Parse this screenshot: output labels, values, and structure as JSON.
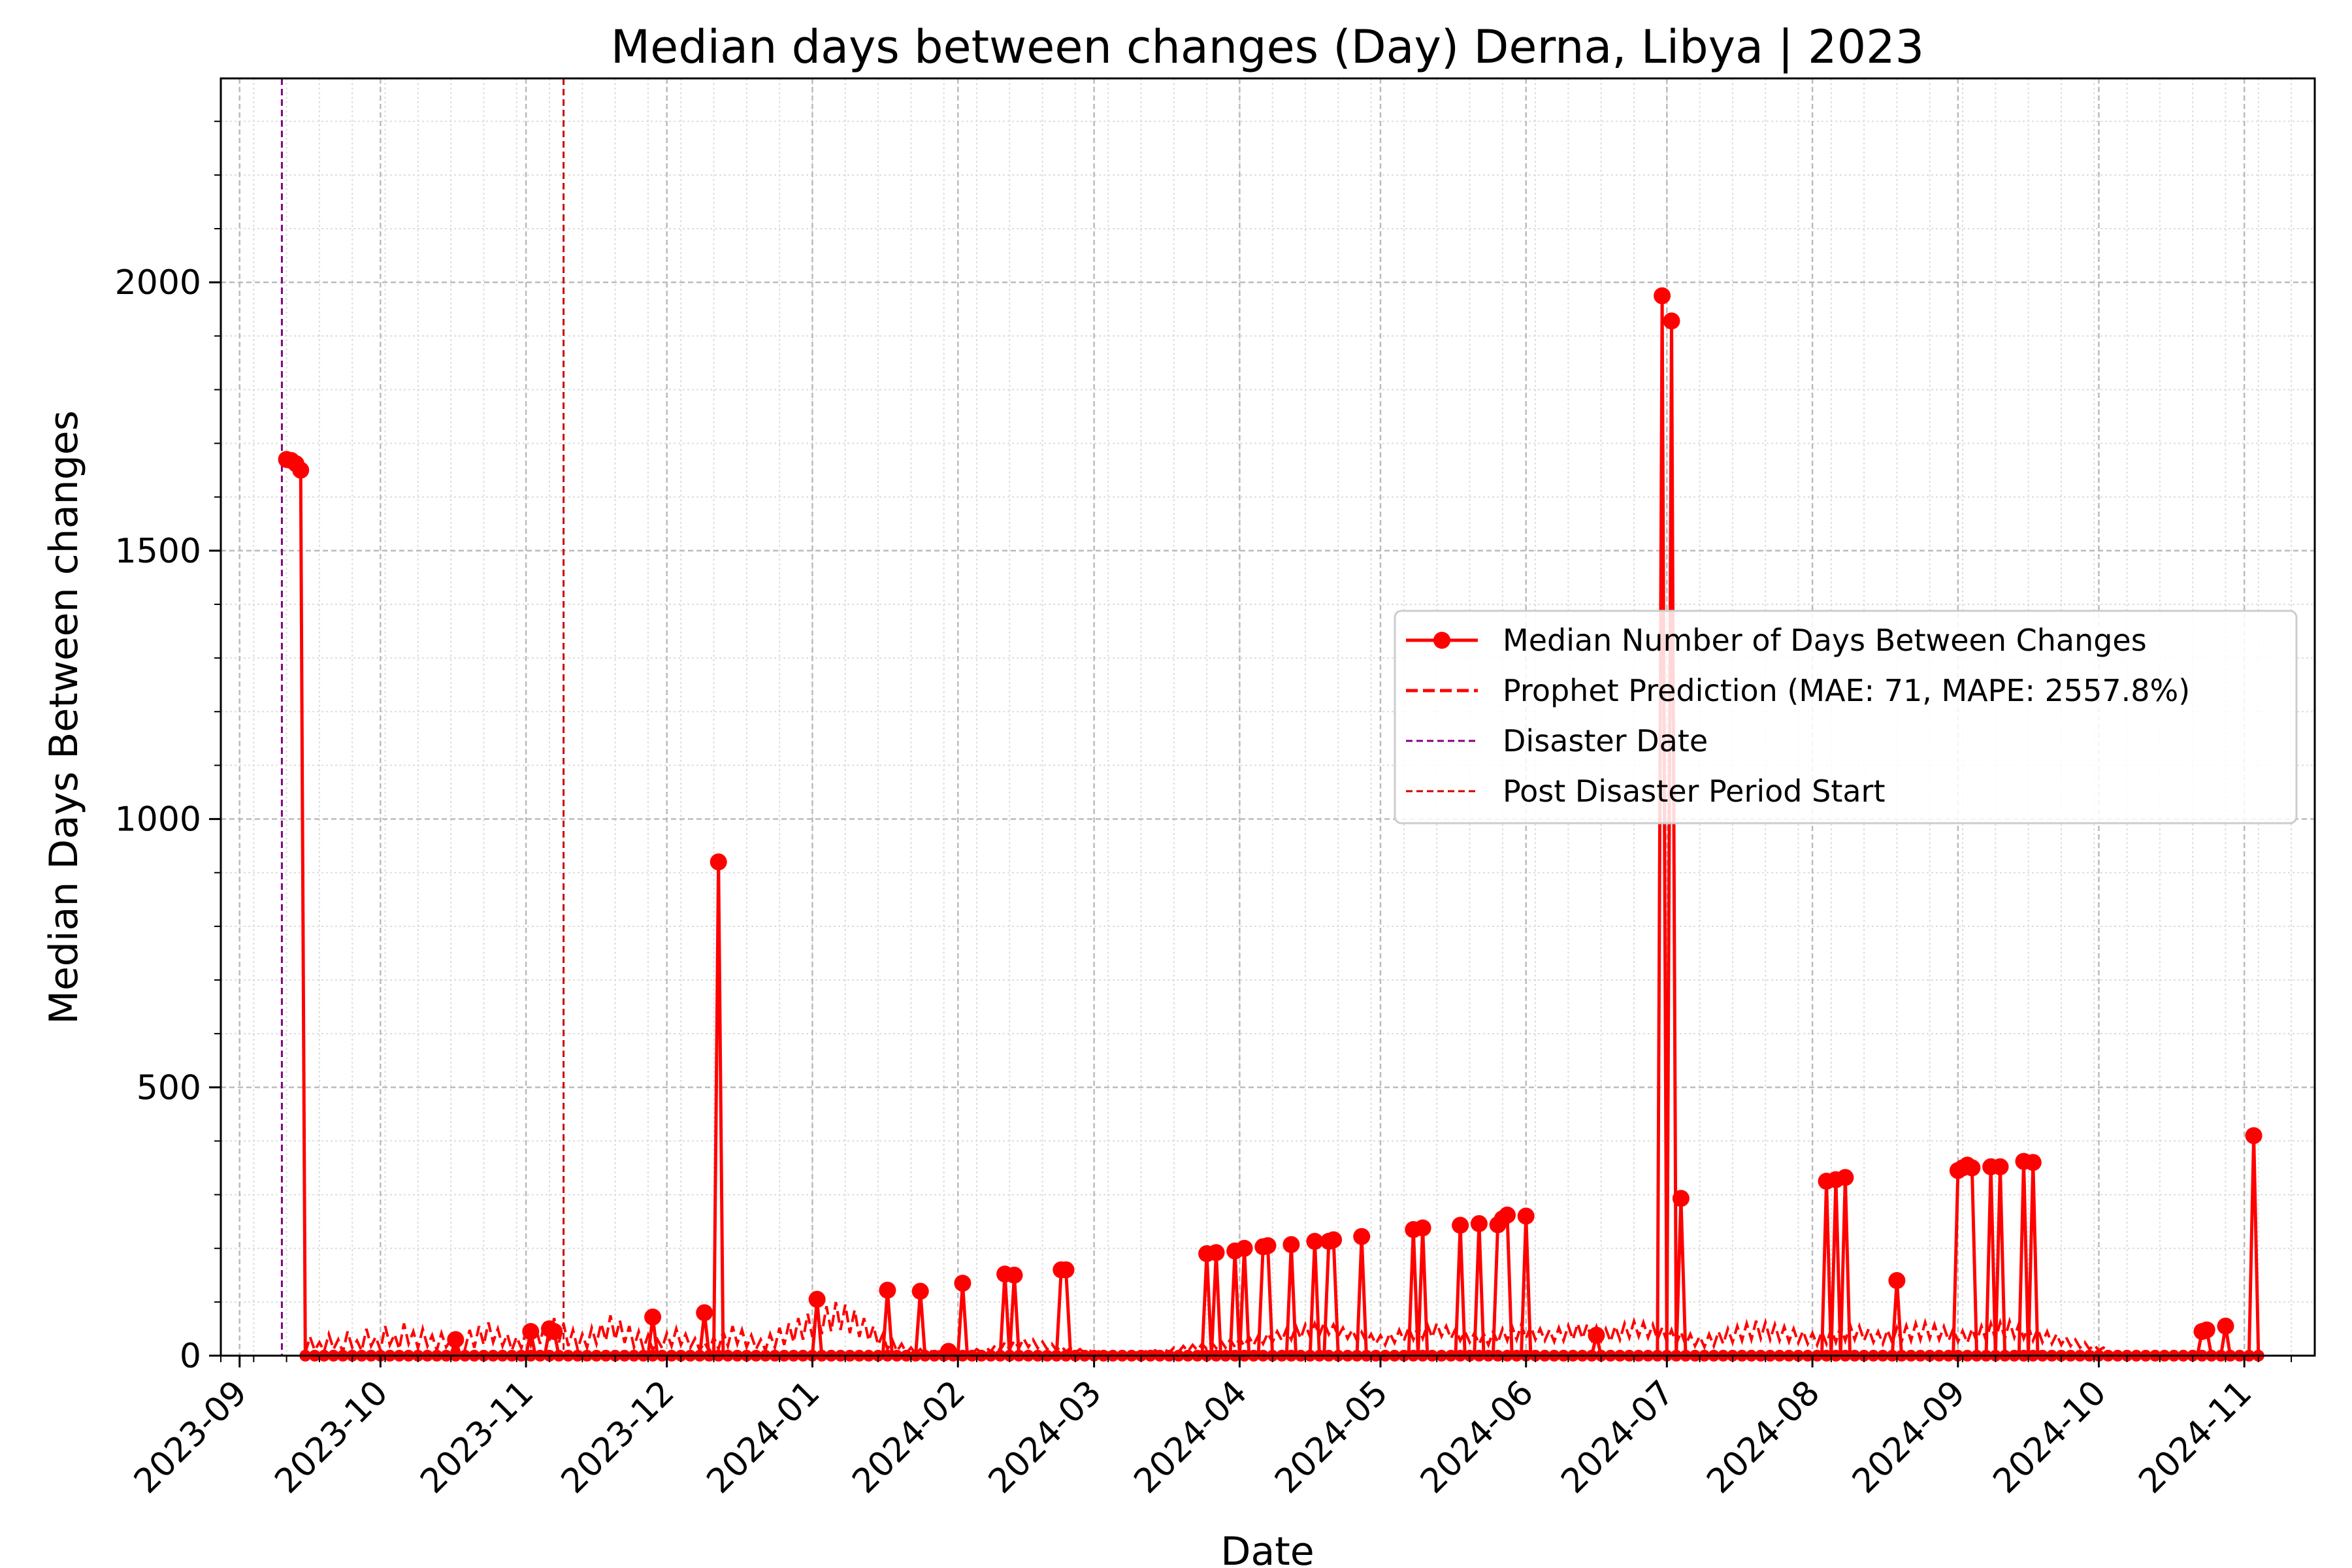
{
  "chart_data": {
    "type": "line",
    "title": "Median days between changes (Day) Derna, Libya | 2023",
    "xlabel": "Date",
    "ylabel": "Median Days Between changes",
    "xlim": [
      "2023-08-28",
      "2024-11-16"
    ],
    "ylim": [
      0,
      2380
    ],
    "y_ticks": [
      0,
      500,
      1000,
      1500,
      2000
    ],
    "x_ticks": [
      "2023-09",
      "2023-10",
      "2023-11",
      "2023-12",
      "2024-01",
      "2024-02",
      "2024-03",
      "2024-04",
      "2024-05",
      "2024-06",
      "2024-07",
      "2024-08",
      "2024-09",
      "2024-10",
      "2024-11"
    ],
    "grid": true,
    "legend_position": "center-right",
    "vlines": [
      {
        "name": "Disaster Date",
        "x": "2023-09-10",
        "color": "#800080"
      },
      {
        "name": "Post Disaster Period Start",
        "x": "2023-11-09",
        "color": "#cc0000"
      }
    ],
    "series": [
      {
        "name": "Median Number of Days Between Changes",
        "style": "solid-marker",
        "color": "#ff0000",
        "points": [
          [
            "2023-09-11",
            1670
          ],
          [
            "2023-09-12",
            1668
          ],
          [
            "2023-09-13",
            1662
          ],
          [
            "2023-09-14",
            1650
          ],
          [
            "2023-09-15",
            0
          ],
          [
            "2023-10-16",
            0
          ],
          [
            "2023-10-17",
            30
          ],
          [
            "2023-10-18",
            0
          ],
          [
            "2023-11-01",
            0
          ],
          [
            "2023-11-02",
            45
          ],
          [
            "2023-11-03",
            0
          ],
          [
            "2023-11-05",
            0
          ],
          [
            "2023-11-06",
            50
          ],
          [
            "2023-11-07",
            45
          ],
          [
            "2023-11-08",
            0
          ],
          [
            "2023-11-27",
            0
          ],
          [
            "2023-11-28",
            72
          ],
          [
            "2023-11-29",
            0
          ],
          [
            "2023-12-08",
            0
          ],
          [
            "2023-12-09",
            80
          ],
          [
            "2023-12-10",
            0
          ],
          [
            "2023-12-11",
            0
          ],
          [
            "2023-12-12",
            920
          ],
          [
            "2023-12-13",
            0
          ],
          [
            "2024-01-01",
            0
          ],
          [
            "2024-01-02",
            105
          ],
          [
            "2024-01-03",
            0
          ],
          [
            "2024-01-16",
            0
          ],
          [
            "2024-01-17",
            122
          ],
          [
            "2024-01-18",
            0
          ],
          [
            "2024-01-23",
            0
          ],
          [
            "2024-01-24",
            120
          ],
          [
            "2024-01-25",
            0
          ],
          [
            "2024-01-29",
            0
          ],
          [
            "2024-01-30",
            8
          ],
          [
            "2024-01-31",
            0
          ],
          [
            "2024-02-01",
            0
          ],
          [
            "2024-02-02",
            135
          ],
          [
            "2024-02-03",
            0
          ],
          [
            "2024-02-10",
            0
          ],
          [
            "2024-02-11",
            152
          ],
          [
            "2024-02-12",
            0
          ],
          [
            "2024-02-13",
            150
          ],
          [
            "2024-02-14",
            0
          ],
          [
            "2024-02-22",
            0
          ],
          [
            "2024-02-23",
            160
          ],
          [
            "2024-02-24",
            160
          ],
          [
            "2024-02-25",
            0
          ],
          [
            "2024-03-24",
            0
          ],
          [
            "2024-03-25",
            190
          ],
          [
            "2024-03-26",
            0
          ],
          [
            "2024-03-27",
            192
          ],
          [
            "2024-03-28",
            0
          ],
          [
            "2024-03-30",
            0
          ],
          [
            "2024-03-31",
            195
          ],
          [
            "2024-04-01",
            0
          ],
          [
            "2024-04-02",
            200
          ],
          [
            "2024-04-03",
            0
          ],
          [
            "2024-04-05",
            0
          ],
          [
            "2024-04-06",
            203
          ],
          [
            "2024-04-07",
            205
          ],
          [
            "2024-04-08",
            0
          ],
          [
            "2024-04-11",
            0
          ],
          [
            "2024-04-12",
            207
          ],
          [
            "2024-04-13",
            0
          ],
          [
            "2024-04-16",
            0
          ],
          [
            "2024-04-17",
            213
          ],
          [
            "2024-04-18",
            0
          ],
          [
            "2024-04-19",
            0
          ],
          [
            "2024-04-20",
            213
          ],
          [
            "2024-04-21",
            216
          ],
          [
            "2024-04-22",
            0
          ],
          [
            "2024-04-26",
            0
          ],
          [
            "2024-04-27",
            222
          ],
          [
            "2024-04-28",
            0
          ],
          [
            "2024-05-07",
            0
          ],
          [
            "2024-05-08",
            235
          ],
          [
            "2024-05-09",
            0
          ],
          [
            "2024-05-10",
            238
          ],
          [
            "2024-05-11",
            0
          ],
          [
            "2024-05-17",
            0
          ],
          [
            "2024-05-18",
            243
          ],
          [
            "2024-05-19",
            0
          ],
          [
            "2024-05-21",
            0
          ],
          [
            "2024-05-22",
            246
          ],
          [
            "2024-05-23",
            0
          ],
          [
            "2024-05-25",
            0
          ],
          [
            "2024-05-26",
            244
          ],
          [
            "2024-05-27",
            255
          ],
          [
            "2024-05-28",
            262
          ],
          [
            "2024-05-29",
            0
          ],
          [
            "2024-05-31",
            0
          ],
          [
            "2024-06-01",
            260
          ],
          [
            "2024-06-02",
            0
          ],
          [
            "2024-06-15",
            0
          ],
          [
            "2024-06-16",
            38
          ],
          [
            "2024-06-17",
            0
          ],
          [
            "2024-06-29",
            0
          ],
          [
            "2024-06-30",
            1975
          ],
          [
            "2024-07-01",
            0
          ],
          [
            "2024-07-02",
            1928
          ],
          [
            "2024-07-03",
            0
          ],
          [
            "2024-07-04",
            293
          ],
          [
            "2024-07-05",
            0
          ],
          [
            "2024-08-03",
            0
          ],
          [
            "2024-08-04",
            325
          ],
          [
            "2024-08-05",
            0
          ],
          [
            "2024-08-06",
            328
          ],
          [
            "2024-08-07",
            0
          ],
          [
            "2024-08-08",
            332
          ],
          [
            "2024-08-09",
            0
          ],
          [
            "2024-08-18",
            0
          ],
          [
            "2024-08-19",
            140
          ],
          [
            "2024-08-20",
            0
          ],
          [
            "2024-08-31",
            0
          ],
          [
            "2024-09-01",
            345
          ],
          [
            "2024-09-02",
            350
          ],
          [
            "2024-09-03",
            355
          ],
          [
            "2024-09-04",
            350
          ],
          [
            "2024-09-05",
            0
          ],
          [
            "2024-09-07",
            0
          ],
          [
            "2024-09-08",
            352
          ],
          [
            "2024-09-09",
            0
          ],
          [
            "2024-09-10",
            352
          ],
          [
            "2024-09-11",
            0
          ],
          [
            "2024-09-14",
            0
          ],
          [
            "2024-09-15",
            362
          ],
          [
            "2024-09-16",
            0
          ],
          [
            "2024-09-17",
            360
          ],
          [
            "2024-09-18",
            0
          ],
          [
            "2024-10-22",
            0
          ],
          [
            "2024-10-23",
            45
          ],
          [
            "2024-10-24",
            48
          ],
          [
            "2024-10-25",
            0
          ],
          [
            "2024-10-27",
            0
          ],
          [
            "2024-10-28",
            55
          ],
          [
            "2024-10-29",
            0
          ],
          [
            "2024-11-02",
            0
          ],
          [
            "2024-11-03",
            410
          ],
          [
            "2024-11-04",
            0
          ],
          [
            "2024-11-05",
            0
          ]
        ]
      },
      {
        "name": "Prophet Prediction (MAE: 71, MAPE: 2557.8%)",
        "style": "dashed",
        "color": "#ff0000",
        "start": "2023-09-15",
        "end": "2024-11-05",
        "step_days": 1,
        "values": [
          5,
          35,
          10,
          25,
          8,
          40,
          12,
          30,
          6,
          45,
          15,
          28,
          9,
          50,
          18,
          35,
          10,
          55,
          20,
          40,
          12,
          60,
          22,
          45,
          14,
          50,
          18,
          38,
          10,
          42,
          16,
          30,
          8,
          35,
          12,
          48,
          15,
          55,
          20,
          62,
          25,
          50,
          18,
          40,
          10,
          35,
          14,
          45,
          20,
          55,
          22,
          65,
          28,
          70,
          24,
          60,
          18,
          48,
          12,
          40,
          15,
          52,
          22,
          60,
          28,
          75,
          30,
          65,
          24,
          55,
          16,
          45,
          12,
          38,
          10,
          30,
          14,
          42,
          18,
          50,
          20,
          40,
          15,
          32,
          10,
          25,
          8,
          35,
          12,
          45,
          18,
          55,
          22,
          48,
          16,
          38,
          12,
          30,
          10,
          40,
          15,
          52,
          20,
          60,
          25,
          70,
          30,
          78,
          35,
          85,
          40,
          92,
          45,
          100,
          48,
          95,
          42,
          85,
          35,
          70,
          28,
          55,
          20,
          40,
          12,
          30,
          8,
          22,
          5,
          15,
          4,
          12,
          3,
          10,
          3,
          8,
          2,
          6,
          2,
          5,
          2,
          8,
          4,
          12,
          6,
          15,
          8,
          20,
          10,
          25,
          12,
          28,
          14,
          32,
          16,
          30,
          14,
          26,
          12,
          22,
          10,
          18,
          8,
          14,
          6,
          12,
          5,
          10,
          4,
          8,
          3,
          6,
          2,
          5,
          2,
          4,
          2,
          6,
          3,
          8,
          4,
          10,
          5,
          12,
          6,
          15,
          7,
          18,
          8,
          20,
          10,
          22,
          12,
          25,
          14,
          28,
          15,
          30,
          16,
          32,
          18,
          35,
          20,
          38,
          22,
          42,
          25,
          45,
          28,
          50,
          30,
          55,
          32,
          58,
          35,
          60,
          38,
          62,
          40,
          58,
          36,
          52,
          32,
          48,
          28,
          44,
          25,
          40,
          22,
          38,
          20,
          42,
          24,
          48,
          28,
          52,
          30,
          55,
          32,
          58,
          34,
          60,
          36,
          55,
          32,
          50,
          28,
          45,
          25,
          42,
          22,
          40,
          20,
          45,
          24,
          50,
          28,
          55,
          30,
          58,
          32,
          55,
          30,
          50,
          28,
          48,
          26,
          52,
          28,
          56,
          30,
          60,
          32,
          58,
          30,
          54,
          28,
          50,
          26,
          55,
          30,
          60,
          34,
          64,
          36,
          62,
          34,
          58,
          30,
          52,
          26,
          48,
          22,
          44,
          20,
          40,
          18,
          36,
          16,
          40,
          18,
          45,
          22,
          50,
          25,
          55,
          28,
          60,
          30,
          65,
          32,
          62,
          30,
          58,
          28,
          54,
          26,
          50,
          24,
          46,
          22,
          42,
          20,
          45,
          22,
          50,
          25,
          55,
          28,
          58,
          30,
          55,
          28,
          50,
          25,
          45,
          22,
          48,
          24,
          52,
          26,
          56,
          28,
          60,
          30,
          62,
          32,
          58,
          30,
          54,
          28,
          50,
          26,
          46,
          24,
          50,
          26,
          55,
          28,
          60,
          30,
          62,
          32,
          64,
          34,
          60,
          32,
          55,
          28,
          50,
          25,
          45,
          22,
          40,
          20,
          35,
          18,
          30,
          15,
          25,
          12,
          20,
          10,
          15,
          8
        ]
      }
    ]
  }
}
